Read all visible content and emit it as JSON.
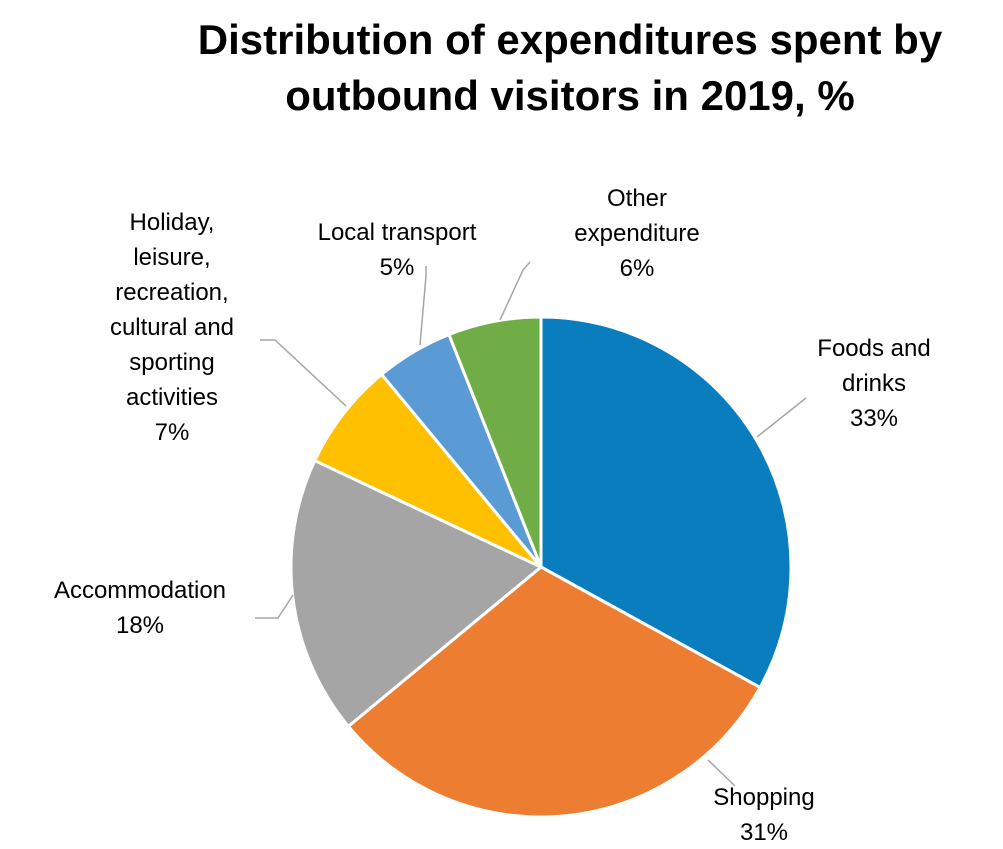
{
  "chart_data": {
    "type": "pie",
    "title": {
      "line1": "Distribution of expenditures spent by",
      "line2": "outbound visitors in 2019, %"
    },
    "slices": [
      {
        "label_lines": [
          "Foods and",
          "drinks"
        ],
        "value": 33,
        "value_label": "33%",
        "color": "#0a7dbf"
      },
      {
        "label_lines": [
          "Shopping"
        ],
        "value": 31,
        "value_label": "31%",
        "color": "#ed7d31"
      },
      {
        "label_lines": [
          "Accommodation"
        ],
        "value": 18,
        "value_label": "18%",
        "color": "#a5a5a5"
      },
      {
        "label_lines": [
          "Holiday,",
          "leisure,",
          "recreation,",
          "cultural and",
          "sporting",
          "activities"
        ],
        "value": 7,
        "value_label": "7%",
        "color": "#ffc000"
      },
      {
        "label_lines": [
          "Local transport"
        ],
        "value": 5,
        "value_label": "5%",
        "color": "#5b9bd5"
      },
      {
        "label_lines": [
          "Other",
          "expenditure"
        ],
        "value": 6,
        "value_label": "6%",
        "color": "#70ad47"
      }
    ],
    "legend": "none",
    "start_angle": "12 o'clock",
    "direction": "clockwise"
  }
}
